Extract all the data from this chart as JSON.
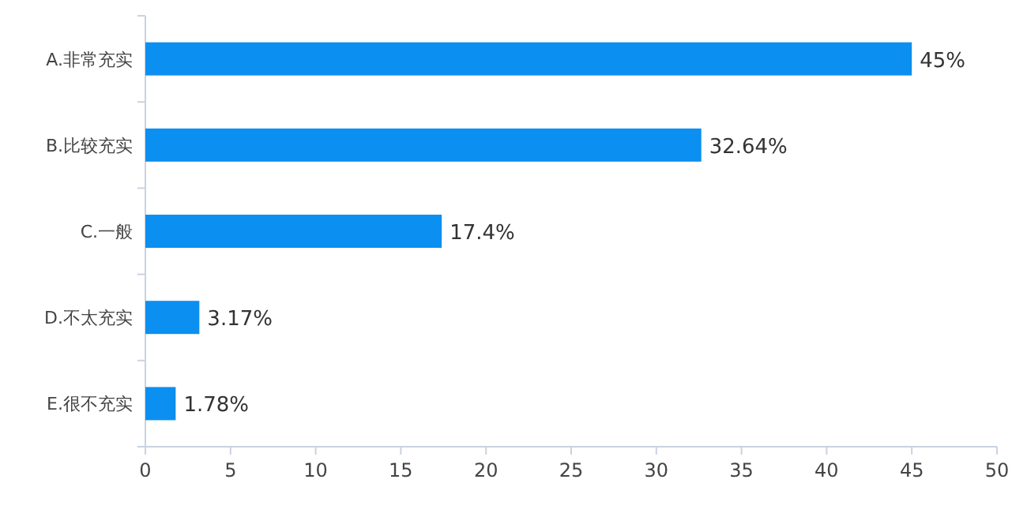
{
  "chart_data": {
    "type": "bar",
    "orientation": "horizontal",
    "categories": [
      "A.非常充实",
      "B.比较充实",
      "C.一般",
      "D.不太充实",
      "E.很不充实"
    ],
    "values": [
      45,
      32.64,
      17.4,
      3.17,
      1.78
    ],
    "color": "#0b8ff0",
    "value_labels": [
      "45%",
      "32.64%",
      "17.4%",
      "3.17%",
      "1.78%"
    ],
    "xlim": [
      0,
      50
    ],
    "xticks": [
      0,
      5,
      10,
      15,
      20,
      25,
      30,
      35,
      40,
      45,
      50
    ],
    "grid": false
  }
}
